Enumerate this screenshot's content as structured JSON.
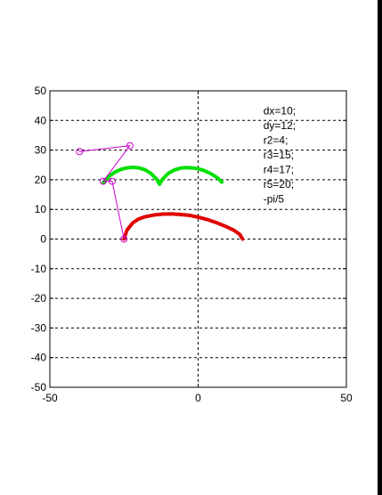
{
  "chart_data": {
    "type": "line",
    "xlim": [
      -50,
      50
    ],
    "ylim": [
      -50,
      50
    ],
    "xticks": [
      "-50",
      "0",
      "50"
    ],
    "yticks": [
      "50",
      "40",
      "30",
      "20",
      "10",
      "0",
      "-10",
      "-20",
      "-30",
      "-40",
      "-50"
    ],
    "grid": true,
    "grid_style": "dashed",
    "params": [
      "dx=10;",
      "dy=12;",
      "r2=4;",
      "r3=15;",
      "r4=17;",
      "r5=20;",
      "-pi/5"
    ],
    "series": [
      {
        "color": "#e00000",
        "style": "thick",
        "x": [
          -25,
          -24,
          -22,
          -20,
          -18,
          -15,
          -12,
          -9,
          -6,
          -3,
          0,
          3,
          6,
          9,
          12,
          14,
          15
        ],
        "y": [
          0,
          3,
          5.5,
          6.8,
          7.5,
          8.1,
          8.4,
          8.5,
          8.3,
          8.0,
          7.4,
          6.6,
          5.6,
          4.4,
          3.0,
          1.6,
          0
        ]
      },
      {
        "color": "#00e000",
        "style": "thick",
        "x": [
          -32,
          -30,
          -28,
          -26,
          -24,
          -22,
          -20,
          -18,
          -16,
          -14,
          -13,
          -12,
          -10,
          -8,
          -6,
          -4,
          -2,
          0,
          2,
          4,
          6,
          7,
          8
        ],
        "y": [
          19,
          21.2,
          22.6,
          23.5,
          24.0,
          24.2,
          24.0,
          23.4,
          22.2,
          20.2,
          18.5,
          20.2,
          22.2,
          23.3,
          23.9,
          24.1,
          24.0,
          23.7,
          23.1,
          22.2,
          21.0,
          20.2,
          19.2
        ]
      },
      {
        "color": "#cc00cc",
        "style": "thin",
        "x": [
          -40,
          -23,
          -32,
          -29,
          -25
        ],
        "y": [
          29.5,
          31.5,
          19.5,
          19.5,
          0
        ],
        "markers": [
          [
            -40,
            29.5
          ],
          [
            -23,
            31.5
          ],
          [
            -32,
            19.5
          ],
          [
            -29,
            19.5
          ],
          [
            -25,
            0
          ]
        ]
      }
    ]
  }
}
